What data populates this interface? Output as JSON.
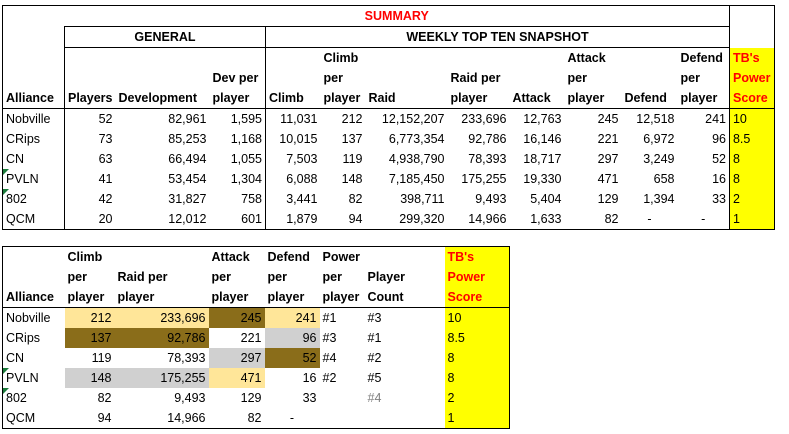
{
  "summary": {
    "title": "SUMMARY",
    "general_label": "GENERAL",
    "weekly_label": "WEEKLY TOP TEN SNAPSHOT",
    "headers": {
      "alliance": "Alliance",
      "players": "Players",
      "development": "Development",
      "dev_per_player": [
        "Dev per",
        "player"
      ],
      "climb": "Climb",
      "climb_per_player": [
        "Climb",
        "per",
        "player"
      ],
      "raid": "Raid",
      "raid_per_player": [
        "Raid per",
        "player"
      ],
      "attack": "Attack",
      "attack_per_player": [
        "Attack",
        "per",
        "player"
      ],
      "defend": "Defend",
      "defend_per_player": [
        "Defend",
        "per",
        "player"
      ],
      "tb_power_score": [
        "TB's",
        "Power",
        "Score"
      ]
    },
    "rows": [
      {
        "alliance": "Nobville",
        "players": "52",
        "development": "82,961",
        "dev_pp": "1,595",
        "climb": "11,031",
        "climb_pp": "212",
        "raid": "12,152,207",
        "raid_pp": "233,696",
        "attack": "12,763",
        "attack_pp": "245",
        "defend": "12,518",
        "defend_pp": "241",
        "score": "10"
      },
      {
        "alliance": "CRips",
        "players": "73",
        "development": "85,253",
        "dev_pp": "1,168",
        "climb": "10,015",
        "climb_pp": "137",
        "raid": "6,773,354",
        "raid_pp": "92,786",
        "attack": "16,146",
        "attack_pp": "221",
        "defend": "6,972",
        "defend_pp": "96",
        "score": "8.5"
      },
      {
        "alliance": "CN",
        "players": "63",
        "development": "66,494",
        "dev_pp": "1,055",
        "climb": "7,503",
        "climb_pp": "119",
        "raid": "4,938,790",
        "raid_pp": "78,393",
        "attack": "18,717",
        "attack_pp": "297",
        "defend": "3,249",
        "defend_pp": "52",
        "score": "8"
      },
      {
        "alliance": "PVLN",
        "players": "41",
        "development": "53,454",
        "dev_pp": "1,304",
        "climb": "6,088",
        "climb_pp": "148",
        "raid": "7,185,450",
        "raid_pp": "175,255",
        "attack": "19,330",
        "attack_pp": "471",
        "defend": "658",
        "defend_pp": "16",
        "score": "8"
      },
      {
        "alliance": "802",
        "players": "42",
        "development": "31,827",
        "dev_pp": "758",
        "climb": "3,441",
        "climb_pp": "82",
        "raid": "398,711",
        "raid_pp": "9,493",
        "attack": "5,404",
        "attack_pp": "129",
        "defend": "1,394",
        "defend_pp": "33",
        "score": "2"
      },
      {
        "alliance": "QCM",
        "players": "20",
        "development": "12,012",
        "dev_pp": "601",
        "climb": "1,879",
        "climb_pp": "94",
        "raid": "299,320",
        "raid_pp": "14,966",
        "attack": "1,633",
        "attack_pp": "82",
        "defend": "-",
        "defend_pp": "-",
        "score": "1"
      }
    ]
  },
  "ranking": {
    "headers": {
      "alliance": "Alliance",
      "climb_per_player": [
        "Climb",
        "per",
        "player"
      ],
      "raid_per_player": [
        "Raid per",
        "player"
      ],
      "attack_per_player": [
        "Attack",
        "per",
        "player"
      ],
      "defend_per_player": [
        "Defend",
        "per",
        "player"
      ],
      "power_per_player": [
        "Power",
        "per",
        "player"
      ],
      "player_count": [
        "Player",
        "Count"
      ],
      "tb_power_score": [
        "TB's",
        "Power",
        "Score"
      ]
    },
    "rows": [
      {
        "alliance": "Nobville",
        "climb": "212",
        "raid": "233,696",
        "attack": "245",
        "defend": "241",
        "power": "#1",
        "count": "#3",
        "score": "10"
      },
      {
        "alliance": "CRips",
        "climb": "137",
        "raid": "92,786",
        "attack": "221",
        "defend": "96",
        "power": "#3",
        "count": "#1",
        "score": "8.5"
      },
      {
        "alliance": "CN",
        "climb": "119",
        "raid": "78,393",
        "attack": "297",
        "defend": "52",
        "power": "#4",
        "count": "#2",
        "score": "8"
      },
      {
        "alliance": "PVLN",
        "climb": "148",
        "raid": "175,255",
        "attack": "471",
        "defend": "16",
        "power": "#2",
        "count": "#5",
        "score": "8"
      },
      {
        "alliance": "802",
        "climb": "82",
        "raid": "9,493",
        "attack": "129",
        "defend": "33",
        "power": "",
        "count": "#4",
        "score": "2"
      },
      {
        "alliance": "QCM",
        "climb": "94",
        "raid": "14,966",
        "attack": "82",
        "defend": "-",
        "power": "",
        "count": "",
        "score": "1"
      }
    ]
  },
  "colors": {
    "tb_score_background": "#ffff00",
    "title_red": "#ff0000",
    "rank_first_gold": "#8a6d1a",
    "rank_second_silver": "#d0d0d0",
    "rank_third_light_gold": "#ffe699"
  }
}
